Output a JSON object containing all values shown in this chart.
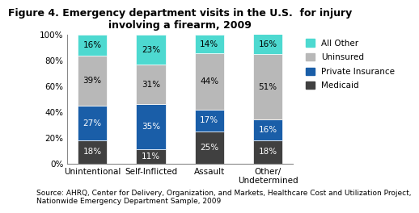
{
  "title": "Figure 4. Emergency department visits in the U.S.  for injury\ninvolving a firearm, 2009",
  "categories": [
    "Unintentional",
    "Self-Inflicted",
    "Assault",
    "Other/\nUndetermined"
  ],
  "segments": {
    "Medicaid": [
      18,
      11,
      25,
      18
    ],
    "Private Insurance": [
      27,
      35,
      17,
      16
    ],
    "Uninsured": [
      39,
      31,
      44,
      51
    ],
    "All Other": [
      16,
      23,
      14,
      16
    ]
  },
  "colors": {
    "Medicaid": "#404040",
    "Private Insurance": "#1a5ea8",
    "Uninsured": "#b8b8b8",
    "All Other": "#4dd9d0"
  },
  "legend_order": [
    "All Other",
    "Uninsured",
    "Private Insurance",
    "Medicaid"
  ],
  "text_colors": {
    "Medicaid": "white",
    "Private Insurance": "white",
    "Uninsured": "black",
    "All Other": "black"
  },
  "source_text": "Source: AHRQ, Center for Delivery, Organization, and Markets, Healthcare Cost and Utilization Project,\nNationwide Emergency Department Sample, 2009",
  "ylim": [
    0,
    100
  ],
  "yticks": [
    0,
    20,
    40,
    60,
    80,
    100
  ],
  "ytick_labels": [
    "0%",
    "20%",
    "40%",
    "60%",
    "80%",
    "100%"
  ],
  "bar_width": 0.5,
  "title_fontsize": 9,
  "label_fontsize": 7.5,
  "tick_fontsize": 7.5,
  "source_fontsize": 6.5,
  "legend_fontsize": 7.5
}
